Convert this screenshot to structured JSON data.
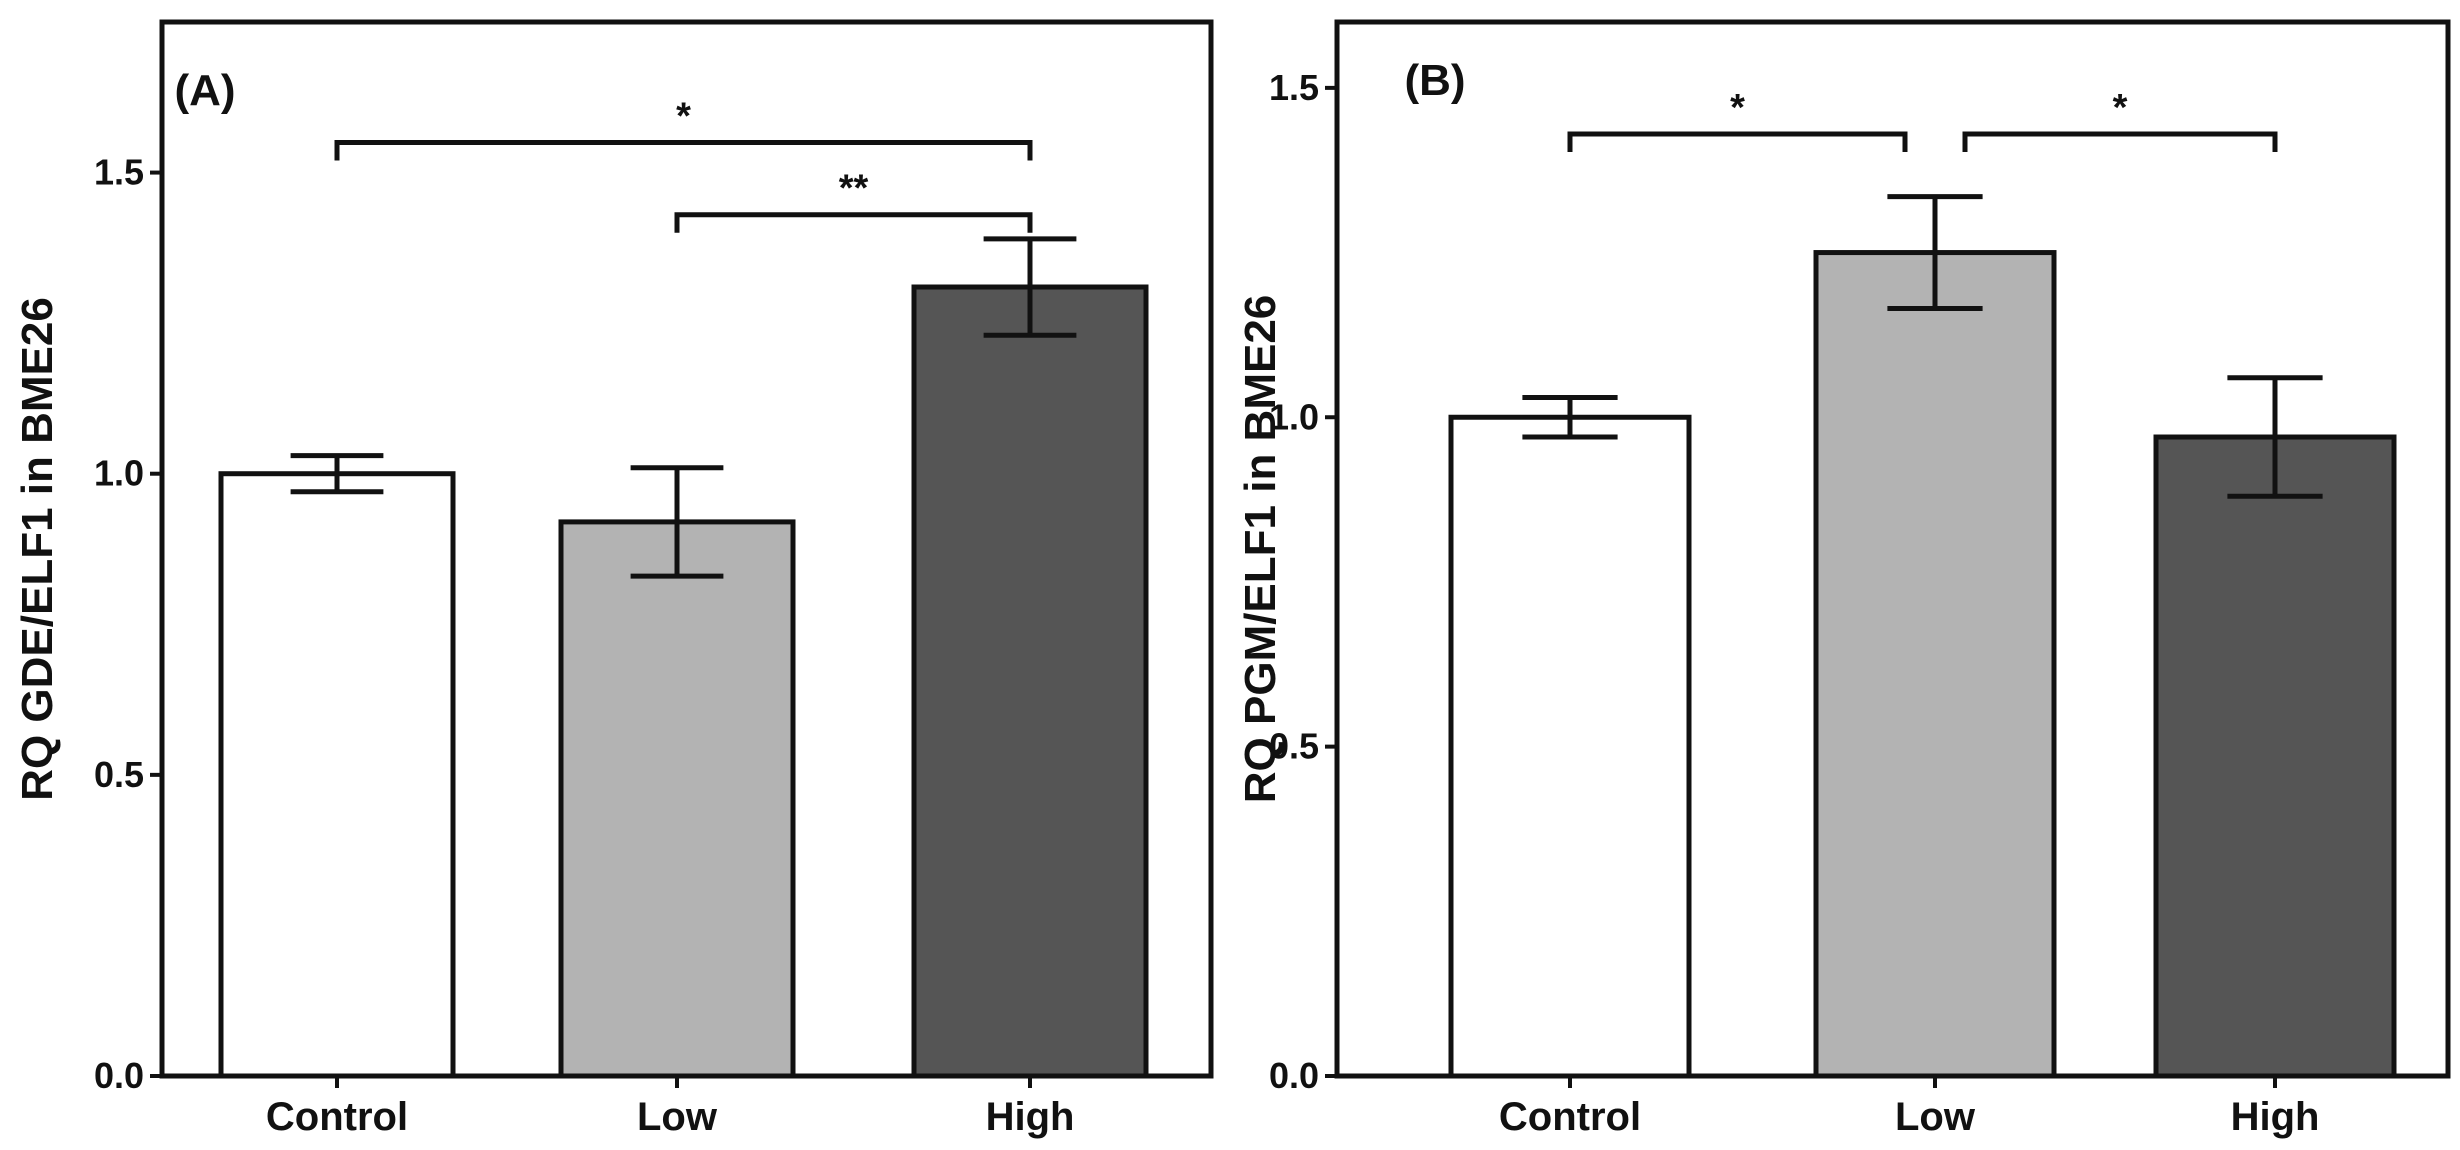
{
  "colors": {
    "control": "#ffffff",
    "low": "#b3b3b3",
    "high": "#555555",
    "stroke": "#111111"
  },
  "chart_data": [
    {
      "type": "bar",
      "panel_label": "(A)",
      "title": "",
      "xlabel": "",
      "ylabel": "RQ GDE/ELF1 in BME26",
      "categories": [
        "Control",
        "Low",
        "High"
      ],
      "values": [
        1.0,
        0.92,
        1.31
      ],
      "errors": [
        0.03,
        0.09,
        0.08
      ],
      "ylim": [
        0,
        1.75
      ],
      "yticks": [
        0.0,
        0.5,
        1.0,
        1.5
      ],
      "ytick_labels": [
        "0.0",
        "0.5",
        "1.0",
        "1.5"
      ],
      "significance": [
        {
          "from": 0,
          "to": 2,
          "label": "*",
          "level": 1.55
        },
        {
          "from": 1,
          "to": 2,
          "label": "**",
          "level": 1.43
        }
      ]
    },
    {
      "type": "bar",
      "panel_label": "(B)",
      "title": "",
      "xlabel": "",
      "ylabel": "RQ PGM/ELF1 in BME26",
      "categories": [
        "Control",
        "Low",
        "High"
      ],
      "values": [
        1.0,
        1.25,
        0.97
      ],
      "errors": [
        0.03,
        0.085,
        0.09
      ],
      "ylim": [
        0,
        1.6
      ],
      "yticks": [
        0.0,
        0.5,
        1.0,
        1.5
      ],
      "ytick_labels": [
        "0.0",
        "0.5",
        "1.0",
        "1.5"
      ],
      "significance": [
        {
          "from": 0,
          "to": 1,
          "label": "*",
          "level": 1.43
        },
        {
          "from": 1,
          "to": 2,
          "label": "*",
          "level": 1.43
        }
      ]
    }
  ]
}
